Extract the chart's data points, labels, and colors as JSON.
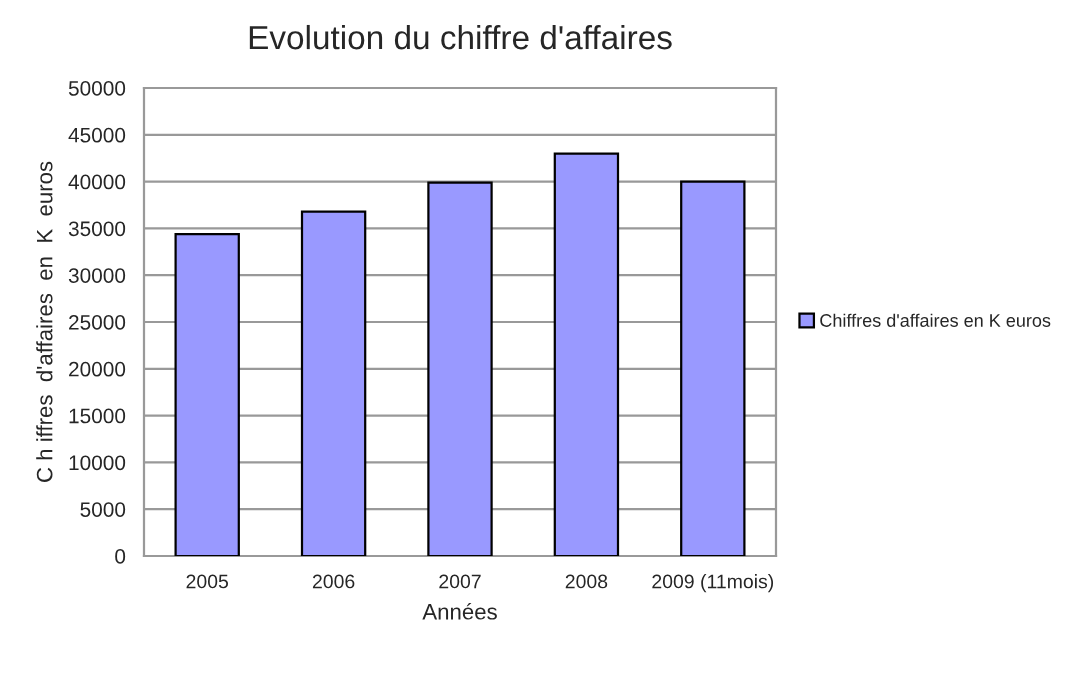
{
  "chart_data": {
    "type": "bar",
    "title": "Evolution du chiffre d'affaires",
    "xlabel": "Années",
    "ylabel": "C h iffres  d'affaires  en  K  euros",
    "categories": [
      "2005",
      "2006",
      "2007",
      "2008",
      "2009 (11mois)"
    ],
    "series": [
      {
        "name": "Chiffres d'affaires en K euros",
        "color": "#9999ff",
        "values": [
          34400,
          36800,
          39900,
          43000,
          40000
        ]
      }
    ],
    "ylim": [
      0,
      50000
    ],
    "yticks": [
      0,
      5000,
      10000,
      15000,
      20000,
      25000,
      30000,
      35000,
      40000,
      45000,
      50000
    ],
    "grid": "y",
    "legend": "right"
  }
}
